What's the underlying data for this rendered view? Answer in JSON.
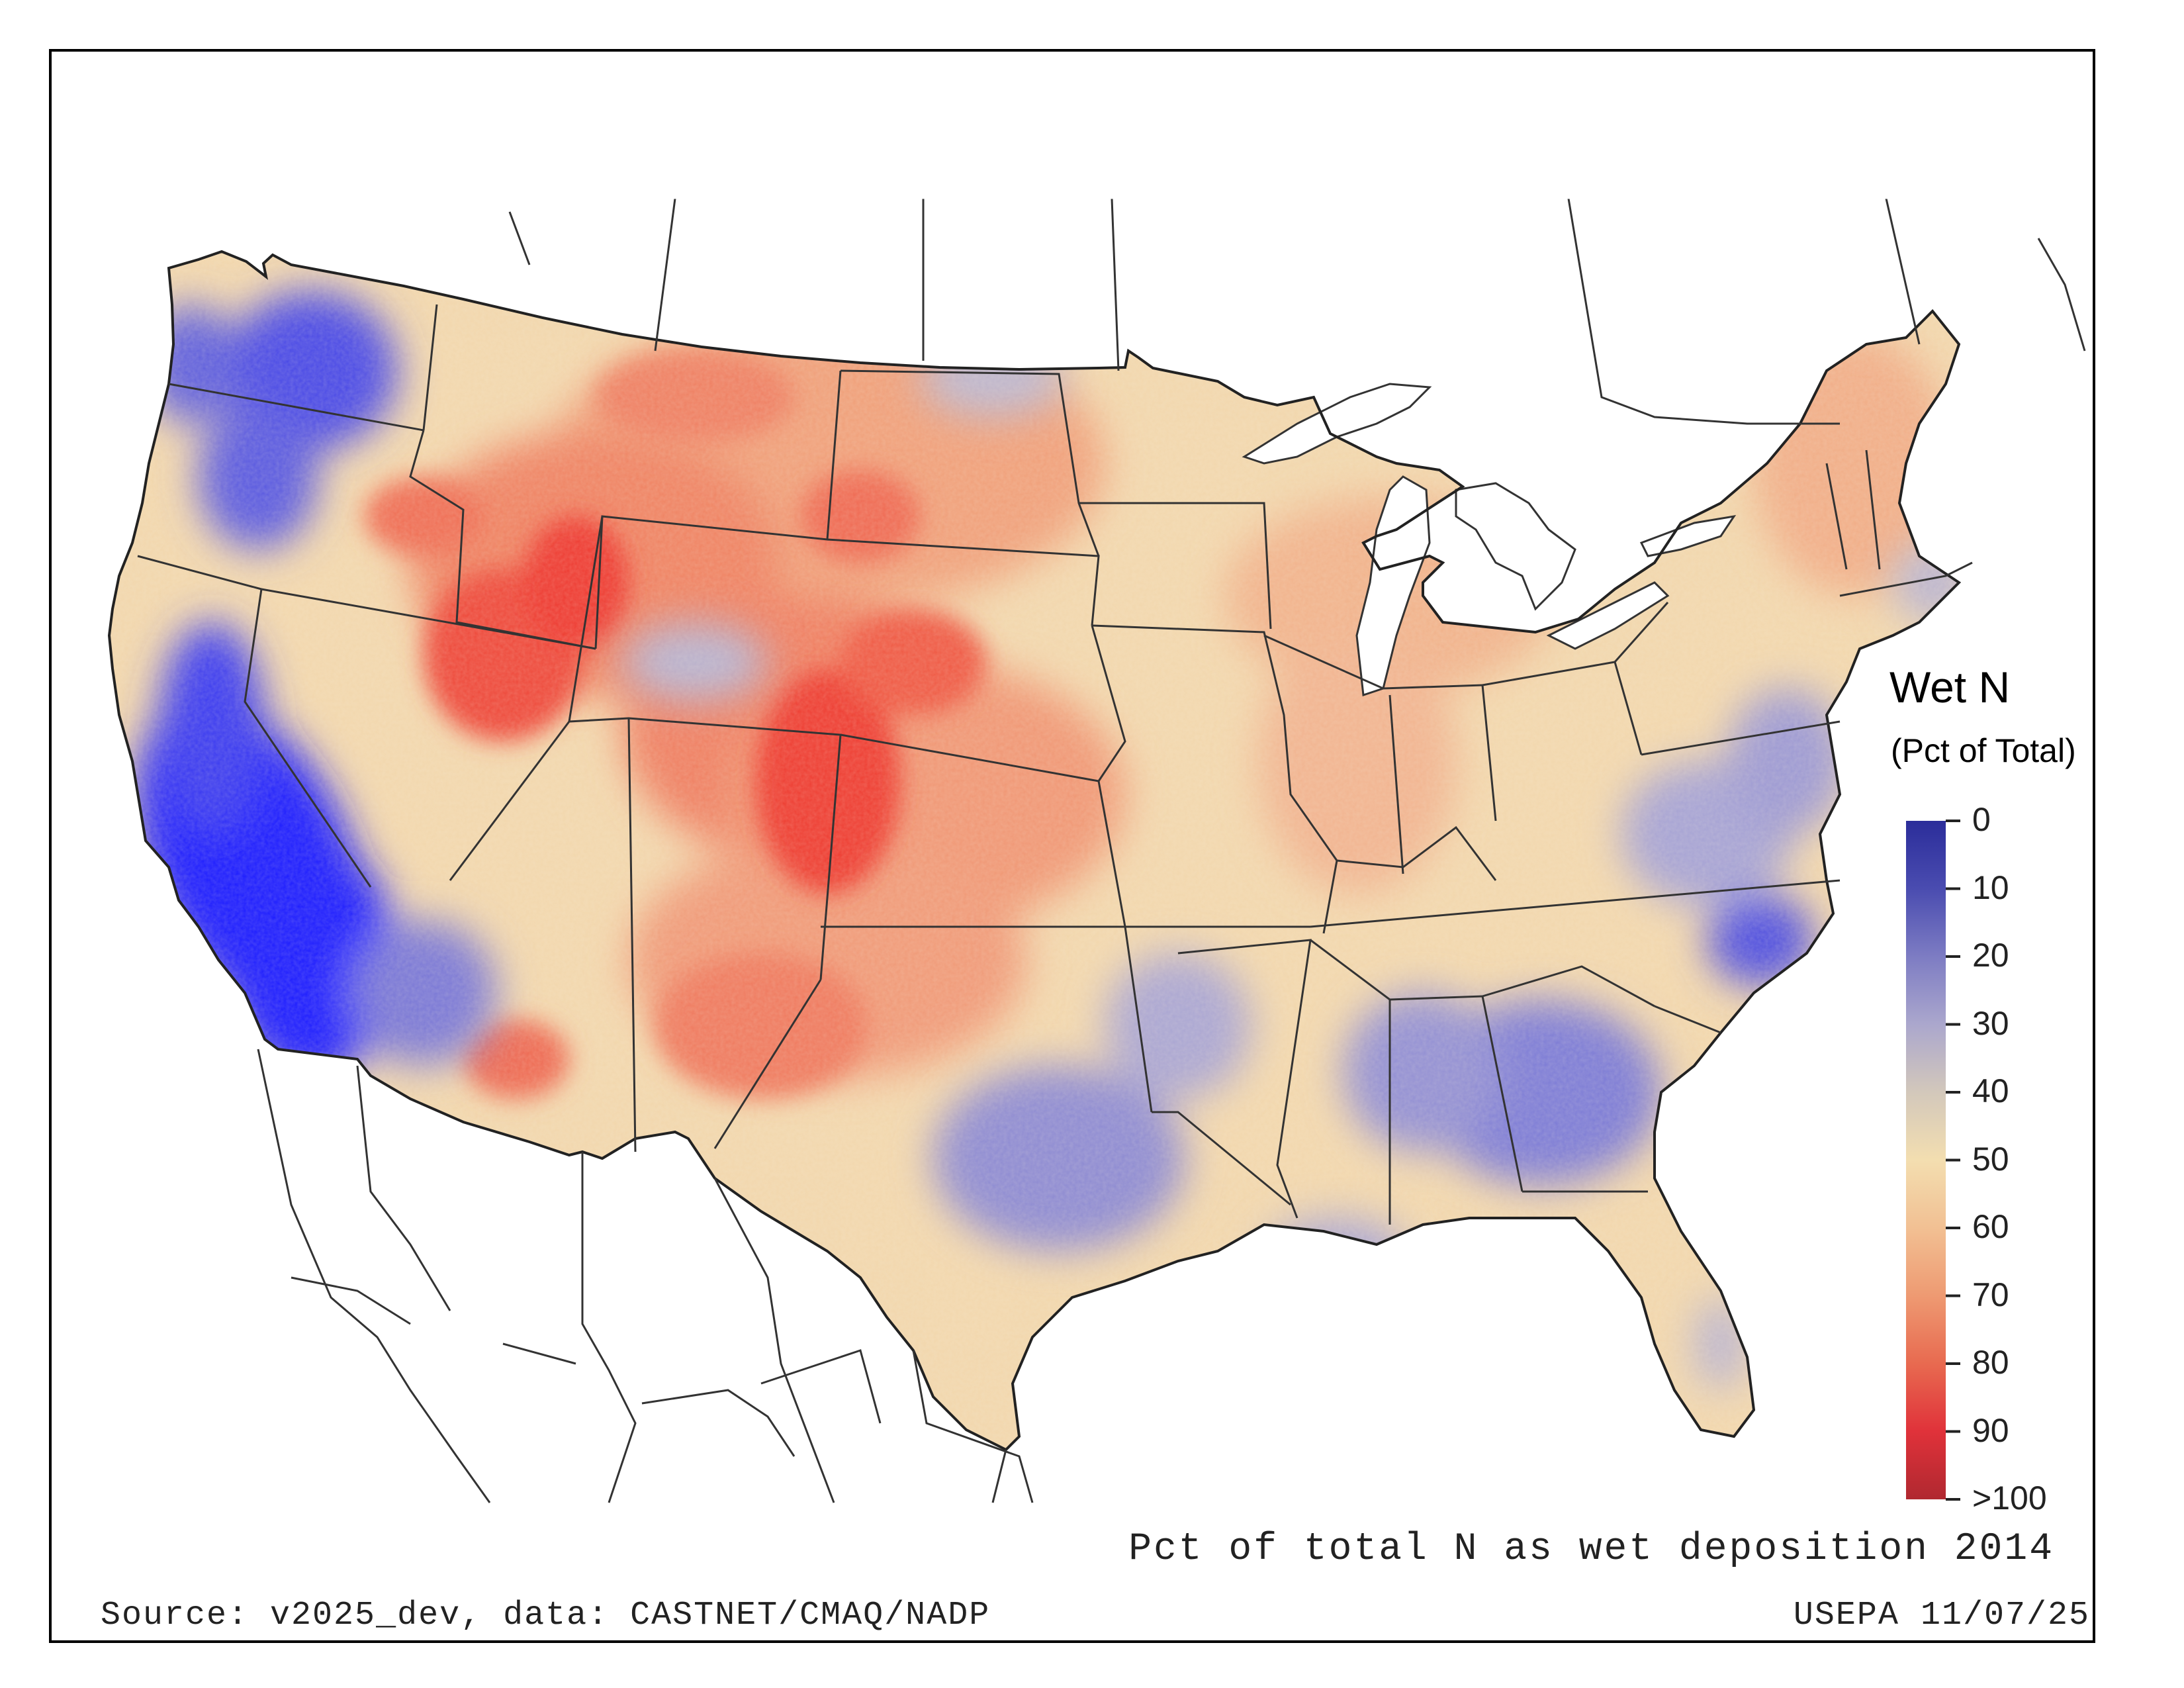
{
  "title": "Pct of total N as wet deposition 2014",
  "source": "Source: v2025_dev, data: CASTNET/CMAQ/NADP",
  "credit": "USEPA 11/07/25",
  "legend": {
    "title": "Wet N",
    "subtitle": "(Pct of Total)",
    "ticks": [
      "0",
      "10",
      "20",
      "30",
      "40",
      "50",
      "60",
      "70",
      "80",
      "90",
      ">100"
    ],
    "colors": [
      "#2b2d9a",
      "#6b6bc0",
      "#aeaad0",
      "#d8cdb8",
      "#f3deb0",
      "#f1b787",
      "#ec8a68",
      "#e2483f",
      "#b42028"
    ]
  },
  "map": {
    "region": "contiguous United States",
    "palette": {
      "very_low": "#1a1aff",
      "low": "#7676d6",
      "mid_low": "#c0bcd6",
      "mid": "#f2ddb1",
      "mid_high": "#f3b288",
      "high": "#ec6c55",
      "very_high": "#ee2a26",
      "water": "#ffffff",
      "outline": "#333333"
    }
  }
}
